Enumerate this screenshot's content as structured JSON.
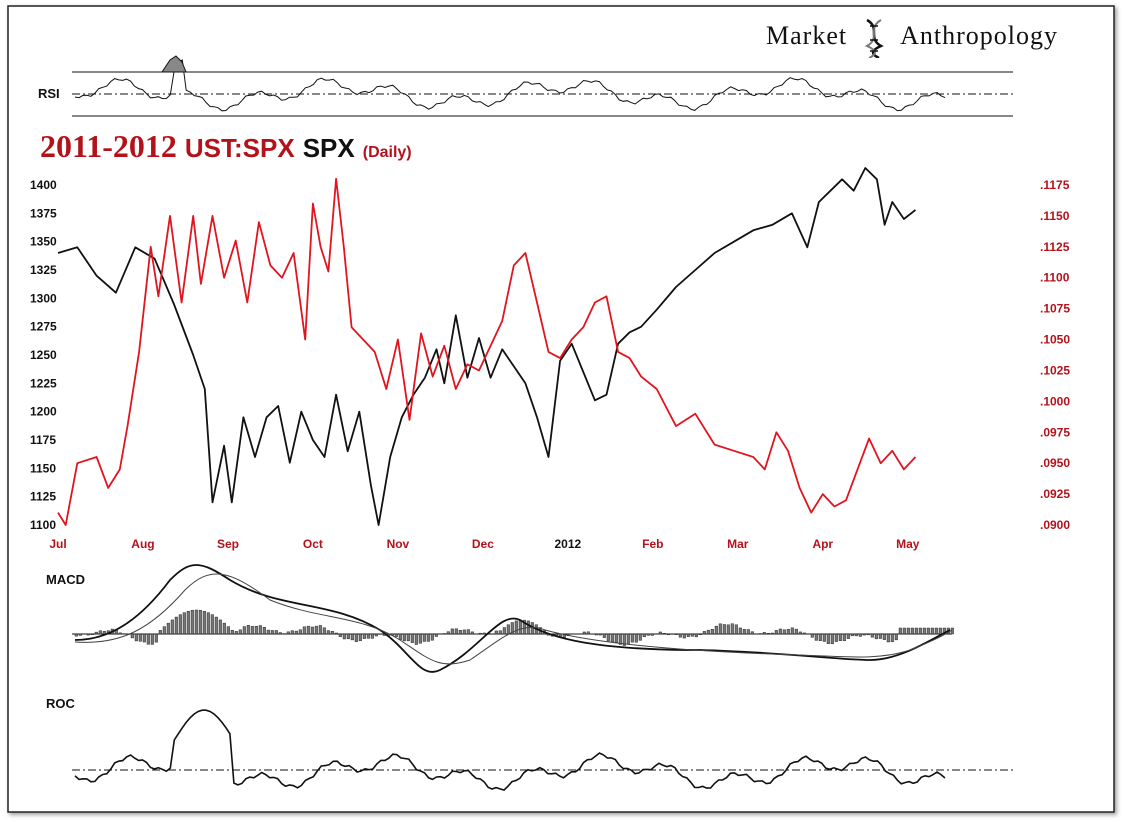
{
  "brand": {
    "left": "Market",
    "right": "Anthropology"
  },
  "title": {
    "years": "2011-2012",
    "ratio": "UST:SPX",
    "index": "SPX",
    "freq": "(Daily)"
  },
  "panels": {
    "rsi_label": "RSI",
    "macd_label": "MACD",
    "roc_label": "ROC"
  },
  "colors": {
    "ratio": "#e0151f",
    "spx": "#111111",
    "left_axis": "#111111",
    "right_axis": "#b3121b",
    "month_axis": "#b3121b"
  },
  "chart_data": {
    "type": "line",
    "title": "2011-2012 UST:SPX SPX (Daily)",
    "x_ticks": [
      "Jul",
      "Aug",
      "Sep",
      "Oct",
      "Nov",
      "Dec",
      "2012",
      "Feb",
      "Mar",
      "Apr",
      "May"
    ],
    "y_left": {
      "ticks": [
        "1100",
        "1125",
        "1150",
        "1175",
        "1200",
        "1225",
        "1250",
        "1275",
        "1300",
        "1325",
        "1350",
        "1375",
        "1400"
      ],
      "ylim": [
        1100,
        1400
      ]
    },
    "y_right": {
      "ticks": [
        ".0900",
        ".0925",
        ".0950",
        ".0975",
        ".1000",
        ".1025",
        ".1050",
        ".1075",
        ".1100",
        ".1125",
        ".1150",
        ".1175"
      ],
      "ylim": [
        0.09,
        0.1175
      ]
    },
    "series": [
      {
        "name": "SPX",
        "axis": "left",
        "points": [
          [
            0,
            1340
          ],
          [
            5,
            1345
          ],
          [
            10,
            1320
          ],
          [
            15,
            1305
          ],
          [
            20,
            1345
          ],
          [
            25,
            1335
          ],
          [
            30,
            1295
          ],
          [
            35,
            1250
          ],
          [
            38,
            1220
          ],
          [
            40,
            1120
          ],
          [
            43,
            1170
          ],
          [
            45,
            1120
          ],
          [
            48,
            1195
          ],
          [
            51,
            1160
          ],
          [
            54,
            1195
          ],
          [
            57,
            1205
          ],
          [
            60,
            1155
          ],
          [
            63,
            1200
          ],
          [
            66,
            1175
          ],
          [
            69,
            1160
          ],
          [
            72,
            1215
          ],
          [
            75,
            1165
          ],
          [
            78,
            1200
          ],
          [
            81,
            1135
          ],
          [
            83,
            1100
          ],
          [
            86,
            1160
          ],
          [
            89,
            1195
          ],
          [
            92,
            1215
          ],
          [
            95,
            1230
          ],
          [
            98,
            1255
          ],
          [
            100,
            1225
          ],
          [
            103,
            1285
          ],
          [
            106,
            1230
          ],
          [
            109,
            1265
          ],
          [
            112,
            1230
          ],
          [
            115,
            1255
          ],
          [
            118,
            1240
          ],
          [
            121,
            1225
          ],
          [
            124,
            1195
          ],
          [
            127,
            1160
          ],
          [
            130,
            1245
          ],
          [
            133,
            1260
          ],
          [
            136,
            1235
          ],
          [
            139,
            1210
          ],
          [
            142,
            1215
          ],
          [
            145,
            1260
          ],
          [
            148,
            1270
          ],
          [
            151,
            1275
          ],
          [
            155,
            1290
          ],
          [
            160,
            1310
          ],
          [
            165,
            1325
          ],
          [
            170,
            1340
          ],
          [
            175,
            1350
          ],
          [
            180,
            1360
          ],
          [
            185,
            1365
          ],
          [
            190,
            1375
          ],
          [
            194,
            1345
          ],
          [
            197,
            1385
          ],
          [
            200,
            1395
          ],
          [
            203,
            1405
          ],
          [
            206,
            1395
          ],
          [
            209,
            1415
          ],
          [
            212,
            1405
          ],
          [
            214,
            1365
          ],
          [
            216,
            1385
          ],
          [
            219,
            1370
          ],
          [
            222,
            1378
          ]
        ]
      },
      {
        "name": "UST:SPX",
        "axis": "right",
        "points": [
          [
            0,
            0.091
          ],
          [
            2,
            0.09
          ],
          [
            5,
            0.095
          ],
          [
            10,
            0.0955
          ],
          [
            13,
            0.093
          ],
          [
            16,
            0.0945
          ],
          [
            18,
            0.098
          ],
          [
            21,
            0.104
          ],
          [
            24,
            0.1125
          ],
          [
            26,
            0.1085
          ],
          [
            29,
            0.115
          ],
          [
            32,
            0.108
          ],
          [
            35,
            0.115
          ],
          [
            37,
            0.1095
          ],
          [
            40,
            0.115
          ],
          [
            43,
            0.11
          ],
          [
            46,
            0.113
          ],
          [
            49,
            0.108
          ],
          [
            52,
            0.1145
          ],
          [
            55,
            0.111
          ],
          [
            58,
            0.11
          ],
          [
            61,
            0.112
          ],
          [
            64,
            0.105
          ],
          [
            66,
            0.116
          ],
          [
            68,
            0.1125
          ],
          [
            70,
            0.1105
          ],
          [
            72,
            0.118
          ],
          [
            74,
            0.1125
          ],
          [
            76,
            0.106
          ],
          [
            79,
            0.105
          ],
          [
            82,
            0.104
          ],
          [
            85,
            0.101
          ],
          [
            88,
            0.105
          ],
          [
            91,
            0.0985
          ],
          [
            94,
            0.1055
          ],
          [
            97,
            0.102
          ],
          [
            100,
            0.1045
          ],
          [
            103,
            0.101
          ],
          [
            106,
            0.103
          ],
          [
            109,
            0.1025
          ],
          [
            112,
            0.1045
          ],
          [
            115,
            0.1065
          ],
          [
            118,
            0.111
          ],
          [
            121,
            0.112
          ],
          [
            124,
            0.108
          ],
          [
            127,
            0.104
          ],
          [
            130,
            0.1035
          ],
          [
            133,
            0.105
          ],
          [
            136,
            0.106
          ],
          [
            139,
            0.108
          ],
          [
            142,
            0.1085
          ],
          [
            145,
            0.104
          ],
          [
            148,
            0.1035
          ],
          [
            151,
            0.102
          ],
          [
            155,
            0.101
          ],
          [
            160,
            0.098
          ],
          [
            165,
            0.099
          ],
          [
            170,
            0.0965
          ],
          [
            175,
            0.096
          ],
          [
            180,
            0.0955
          ],
          [
            183,
            0.0945
          ],
          [
            186,
            0.0975
          ],
          [
            189,
            0.096
          ],
          [
            192,
            0.093
          ],
          [
            195,
            0.091
          ],
          [
            198,
            0.0925
          ],
          [
            201,
            0.0915
          ],
          [
            204,
            0.092
          ],
          [
            207,
            0.0945
          ],
          [
            210,
            0.097
          ],
          [
            213,
            0.095
          ],
          [
            216,
            0.096
          ],
          [
            219,
            0.0945
          ],
          [
            222,
            0.0955
          ]
        ]
      }
    ],
    "indicators": {
      "rsi": {
        "ylim": [
          0,
          100
        ],
        "midline": 50,
        "upper": 70,
        "lower": 30
      },
      "macd": {
        "zero_line": 0
      },
      "roc": {
        "zero_line": 0
      }
    }
  }
}
